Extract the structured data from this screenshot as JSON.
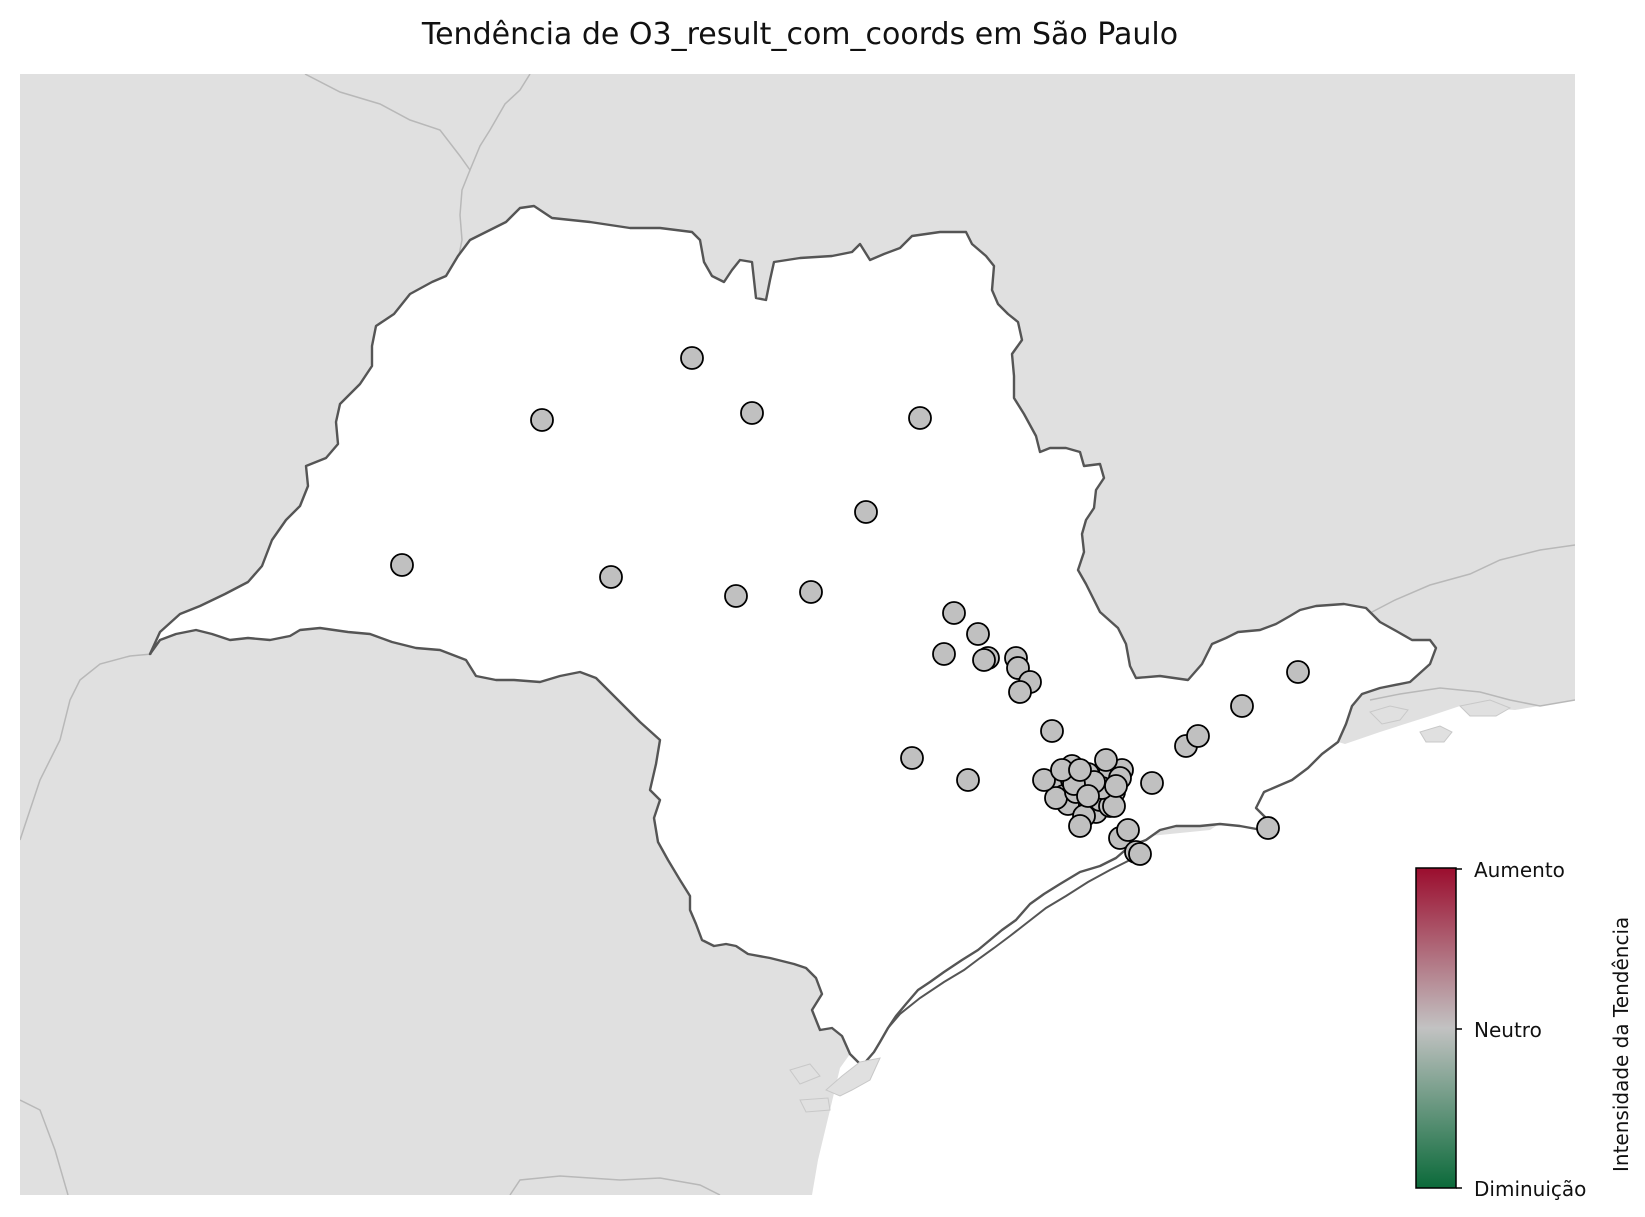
{
  "title": "Tendência de O3_result_com_coords em São Paulo",
  "colors": {
    "background_land": "#e0e0e0",
    "state_fill": "#ffffff",
    "state_border": "#555555",
    "neighbor_border": "#b8b8b8",
    "station_fill": "#c0c0c0",
    "station_stroke": "#000000",
    "cbar_top": "#9b0d2e",
    "cbar_mid": "#c2c2c2",
    "cbar_bottom": "#0b6a3a"
  },
  "colorbar": {
    "label": "Intensidade da Tendência",
    "ticks": [
      "Aumento",
      "Neutro",
      "Diminuição"
    ]
  },
  "stations": {
    "count": 65,
    "trend": "Neutro"
  }
}
